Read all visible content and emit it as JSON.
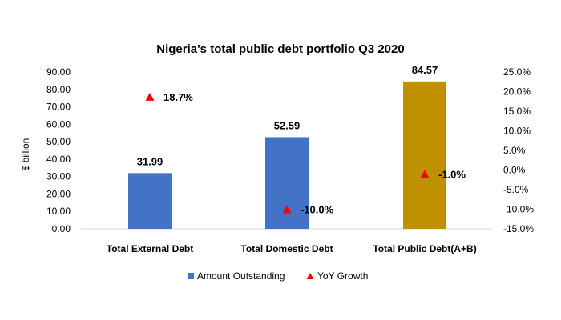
{
  "chart_data": {
    "type": "bar",
    "title": "Nigeria's total public debt portfolio Q3 2020",
    "ylabel": "$ billion",
    "y2label": "",
    "categories": [
      "Total External Debt",
      "Total Domestic Debt",
      "Total Public Debt(A+B)"
    ],
    "ylim": [
      0,
      90
    ],
    "y_ticks": [
      "0.00",
      "10.00",
      "20.00",
      "30.00",
      "40.00",
      "50.00",
      "60.00",
      "70.00",
      "80.00",
      "90.00"
    ],
    "y2lim": [
      -15,
      25
    ],
    "y2_ticks": [
      "-15.0%",
      "-10.0%",
      "-5.0%",
      "0.0%",
      "5.0%",
      "10.0%",
      "15.0%",
      "20.0%",
      "25.0%"
    ],
    "series": [
      {
        "name": "Amount Outstanding",
        "type": "bar",
        "axis": "left",
        "values": [
          31.99,
          52.59,
          84.57
        ],
        "labels": [
          "31.99",
          "52.59",
          "84.57"
        ],
        "colors": [
          "#4472C4",
          "#4472C4",
          "#BF9000"
        ]
      },
      {
        "name": "YoY Growth",
        "type": "scatter",
        "marker": "triangle",
        "axis": "right",
        "values": [
          18.7,
          -10.0,
          -1.0
        ],
        "labels": [
          "18.7%",
          "-10.0%",
          "-1.0%"
        ],
        "color": "#FF0000"
      }
    ],
    "legend": {
      "position": "bottom",
      "items": [
        {
          "label": "Amount Outstanding",
          "color": "#4472C4",
          "shape": "square"
        },
        {
          "label": "YoY Growth",
          "color": "#FF0000",
          "shape": "triangle"
        }
      ]
    },
    "grid": false
  }
}
